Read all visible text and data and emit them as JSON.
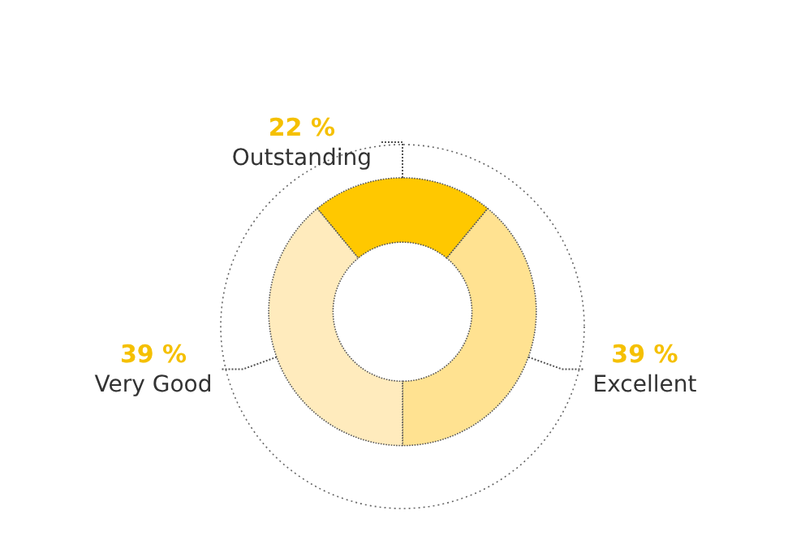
{
  "chart_data": {
    "type": "donut",
    "categories": [
      "Outstanding",
      "Excellent",
      "Very Good"
    ],
    "values": [
      22,
      39,
      39
    ],
    "colors": [
      "#ffc800",
      "#ffe291",
      "#ffebbd"
    ],
    "value_labels": [
      "22 %",
      "39 %",
      "39 %"
    ],
    "legend": false
  }
}
